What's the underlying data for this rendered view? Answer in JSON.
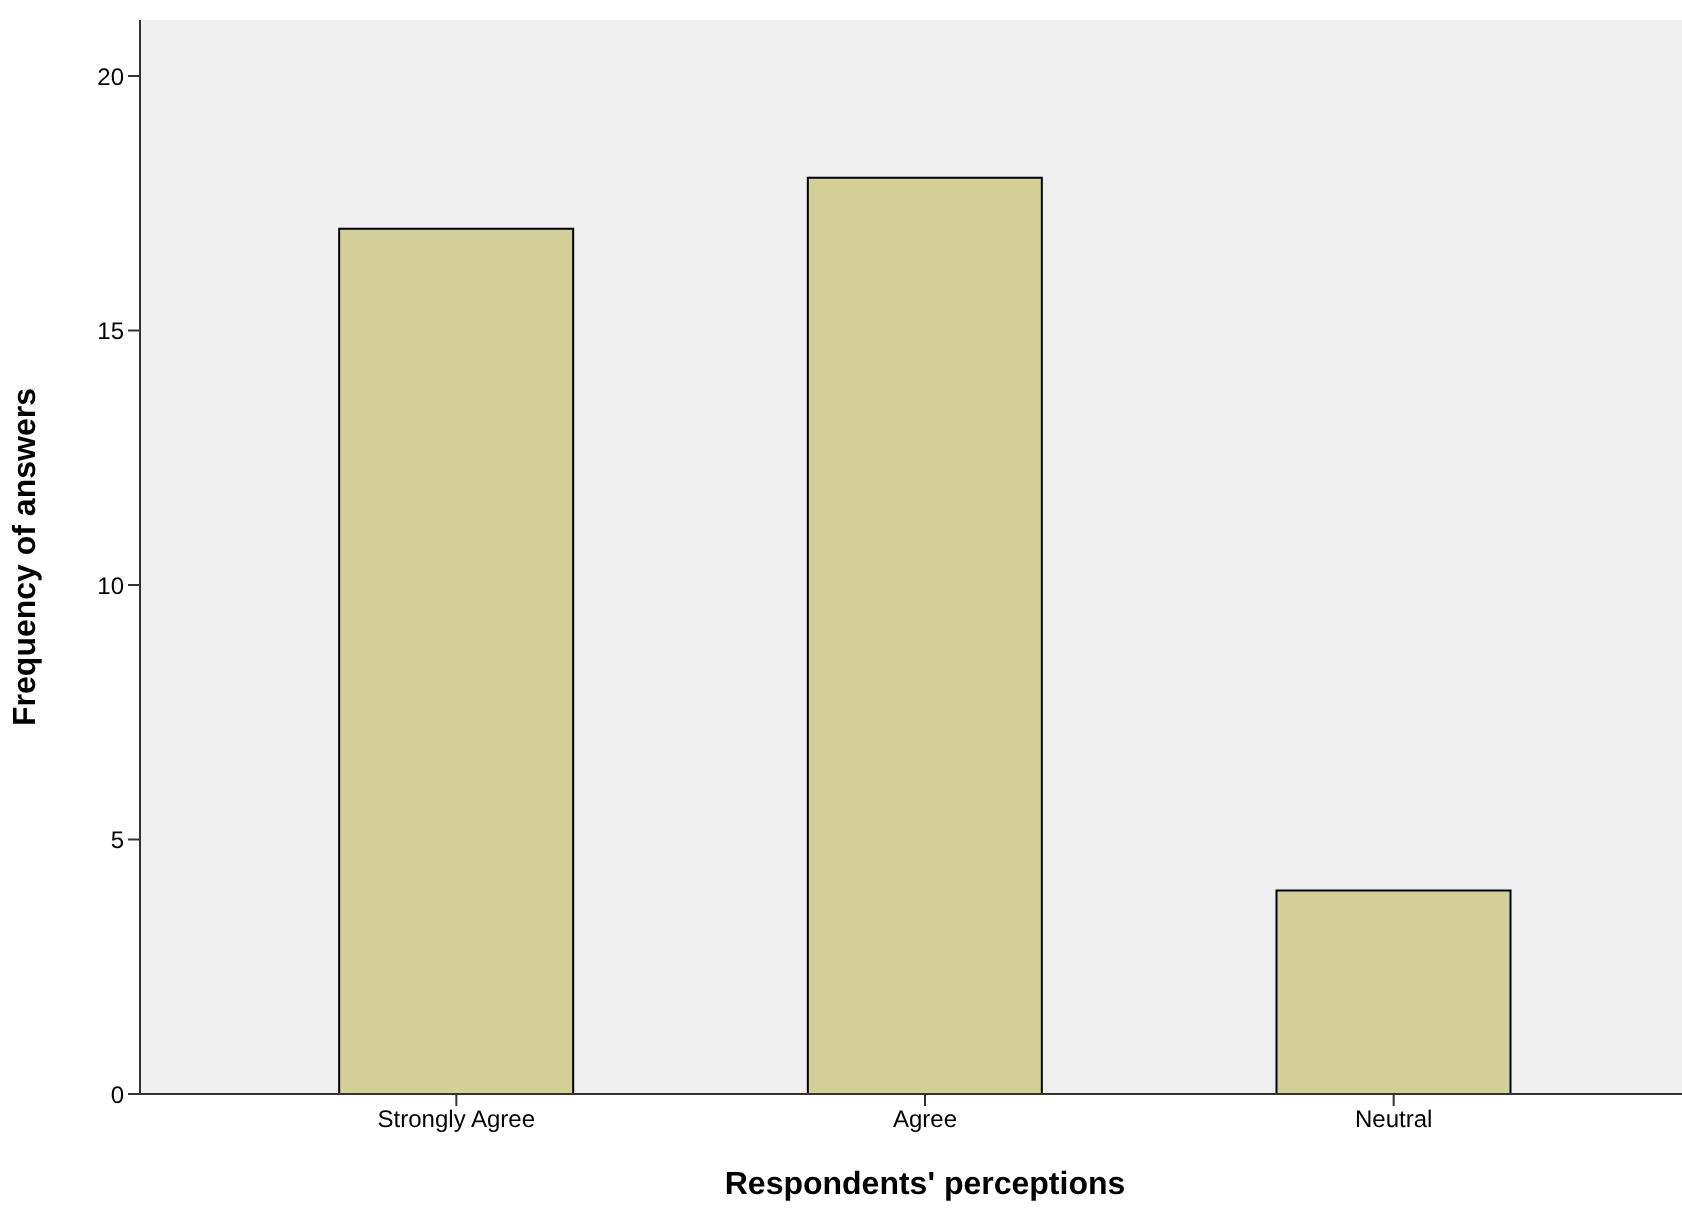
{
  "chart_data": {
    "type": "bar",
    "xlabel": "Respondents' perceptions",
    "ylabel": "Frequency of answers",
    "categories": [
      "Strongly Agree",
      "Agree",
      "Neutral"
    ],
    "values": [
      17,
      18,
      4
    ],
    "color": "#d3cf98",
    "ylim": [
      0,
      21.1
    ],
    "yticks": [
      0,
      5,
      10,
      15,
      20
    ],
    "grid": false
  }
}
